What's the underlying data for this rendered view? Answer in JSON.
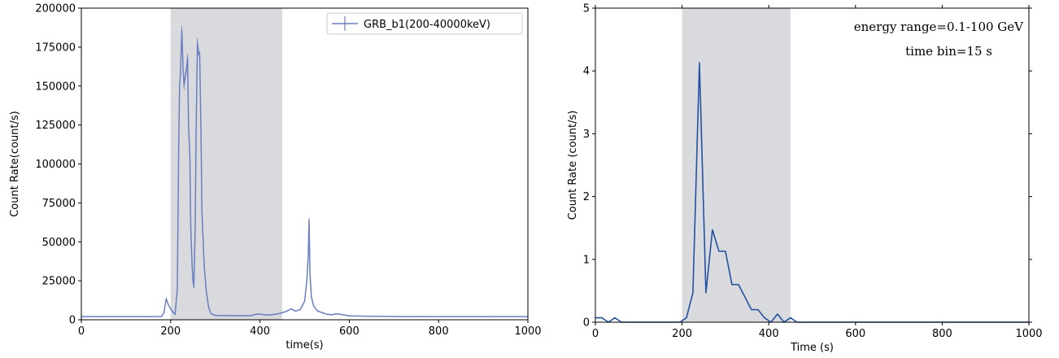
{
  "chart_data": [
    {
      "type": "line",
      "title": "",
      "xlabel": "time(s)",
      "ylabel": "Count Rate(count/s)",
      "xlim": [
        0,
        1000
      ],
      "ylim": [
        0,
        200000
      ],
      "xticks": [
        0,
        200,
        400,
        600,
        800,
        1000
      ],
      "yticks": [
        0,
        25000,
        50000,
        75000,
        100000,
        125000,
        150000,
        175000,
        200000
      ],
      "grid": false,
      "legend": "top-right",
      "shaded_region": [
        200,
        450
      ],
      "colors": {
        "line": "#6a7ec0",
        "shade": "#d9dadd"
      },
      "series": [
        {
          "name": "GRB_b1(200-40000keV)",
          "x": [
            0,
            50,
            100,
            150,
            180,
            185,
            190,
            195,
            200,
            205,
            210,
            215,
            218,
            220,
            222,
            225,
            228,
            230,
            233,
            235,
            238,
            240,
            243,
            245,
            248,
            250,
            252,
            255,
            257,
            260,
            262,
            265,
            268,
            270,
            275,
            280,
            285,
            290,
            300,
            320,
            350,
            380,
            390,
            400,
            420,
            440,
            450,
            460,
            470,
            480,
            490,
            495,
            500,
            505,
            508,
            510,
            512,
            515,
            520,
            525,
            530,
            540,
            550,
            560,
            570,
            580,
            590,
            600,
            650,
            700,
            800,
            900,
            1000
          ],
          "y": [
            2000,
            2000,
            2000,
            2000,
            2100,
            4500,
            13500,
            9500,
            7000,
            5000,
            3500,
            20000,
            110000,
            150000,
            158000,
            186000,
            160000,
            150000,
            157000,
            160000,
            168000,
            125000,
            105000,
            60000,
            35000,
            25000,
            21000,
            60000,
            120000,
            178000,
            172000,
            170000,
            120000,
            70000,
            35000,
            18000,
            8000,
            4000,
            2800,
            2700,
            2600,
            2600,
            3500,
            3600,
            3000,
            3800,
            4500,
            5500,
            7000,
            5500,
            6500,
            9000,
            12000,
            25000,
            40000,
            64000,
            30000,
            15000,
            9000,
            7000,
            5500,
            4500,
            3500,
            3200,
            3800,
            3500,
            3000,
            2500,
            2200,
            2100,
            2000,
            2000,
            2000
          ]
        }
      ]
    },
    {
      "type": "line",
      "title": "",
      "xlabel": "Time (s)",
      "ylabel": "Count Rate (count/s)",
      "xlim": [
        0,
        1000
      ],
      "ylim": [
        0,
        5
      ],
      "xticks": [
        0,
        200,
        400,
        600,
        800,
        1000
      ],
      "yticks": [
        0,
        1,
        2,
        3,
        4,
        5
      ],
      "grid": false,
      "shaded_region": [
        200,
        450
      ],
      "annotations": [
        "energy range=0.1-100 GeV",
        "time bin=15 s"
      ],
      "colors": {
        "line": "#2450a4",
        "shade": "#d9dadd"
      },
      "series": [
        {
          "x": [
            0,
            15,
            30,
            45,
            60,
            75,
            90,
            105,
            120,
            135,
            150,
            165,
            180,
            195,
            210,
            225,
            240,
            255,
            270,
            285,
            300,
            315,
            330,
            345,
            360,
            375,
            390,
            405,
            420,
            435,
            450,
            465,
            480,
            495,
            510,
            525,
            540,
            555,
            570,
            585,
            600,
            700,
            800,
            900,
            1000
          ],
          "y": [
            0.07,
            0.07,
            0.0,
            0.07,
            0.0,
            0.0,
            0.0,
            0.0,
            0.0,
            0.0,
            0.0,
            0.0,
            0.0,
            0.0,
            0.07,
            0.47,
            4.13,
            0.47,
            1.47,
            1.13,
            1.13,
            0.6,
            0.6,
            0.4,
            0.2,
            0.2,
            0.07,
            0.0,
            0.13,
            0.0,
            0.07,
            0.0,
            0.0,
            0.0,
            0.0,
            0.0,
            0.0,
            0.0,
            0.0,
            0.0,
            0.0,
            0.0,
            0.0,
            0.0,
            0.0
          ]
        }
      ]
    }
  ]
}
